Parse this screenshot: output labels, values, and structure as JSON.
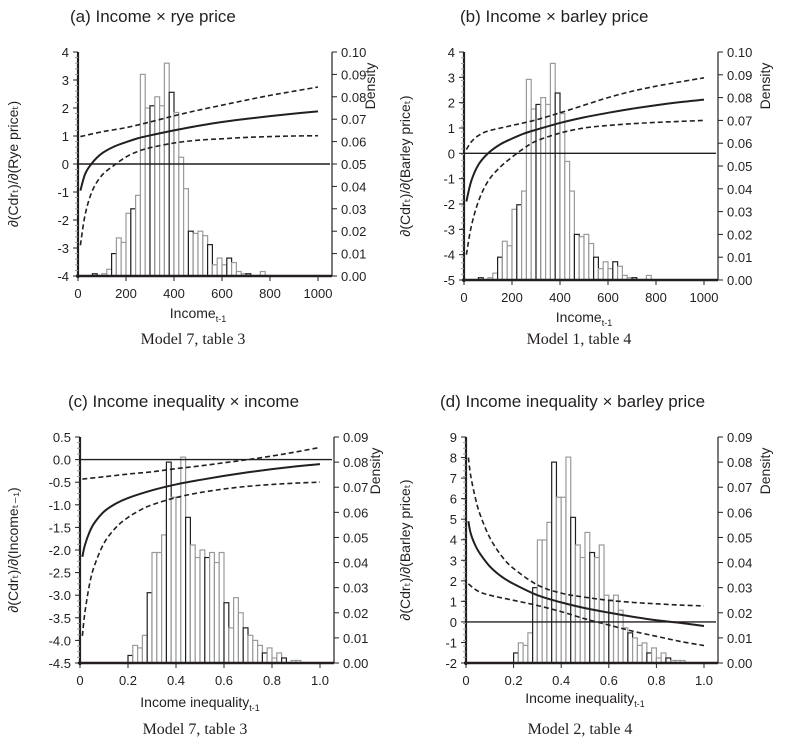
{
  "chart_data": [
    {
      "id": "a",
      "type": "line",
      "title": "(a) Income × rye price",
      "caption": "Model 7, table 3",
      "xlabel": "Income",
      "xlabel_sub": "t-1",
      "ylabel": "∂(Cdrₜ)/∂(Rye priceₜ)",
      "y2label": "Density",
      "xlim": [
        0,
        1000
      ],
      "ylim": [
        -4,
        4
      ],
      "y2lim": [
        0,
        0.1
      ],
      "xticks": [
        "0",
        "200",
        "400",
        "600",
        "800",
        "1000"
      ],
      "xtick_values": [
        0,
        200,
        400,
        600,
        800,
        1000
      ],
      "yticks": [
        "4",
        "3",
        "2",
        "1",
        "0",
        "-1",
        "-2",
        "-3",
        "-4"
      ],
      "ytick_values": [
        4,
        3,
        2,
        1,
        0,
        -1,
        -2,
        -3,
        -4
      ],
      "y2ticks": [
        "0.10",
        "0.09",
        "0.08",
        "0.07",
        "0.06",
        "0.05",
        "0.04",
        "0.03",
        "0.02",
        "0.01",
        "0.00"
      ],
      "y2tick_values": [
        0.1,
        0.09,
        0.08,
        0.07,
        0.06,
        0.05,
        0.04,
        0.03,
        0.02,
        0.01,
        0.0
      ],
      "zero_line": 0,
      "series": [
        {
          "name": "marginal effect",
          "style": "solid",
          "x": [
            10,
            30,
            60,
            100,
            150,
            200,
            250,
            300,
            400,
            500,
            600,
            700,
            800,
            900,
            1000
          ],
          "y": [
            -0.95,
            -0.35,
            0.05,
            0.38,
            0.62,
            0.78,
            0.92,
            1.02,
            1.2,
            1.36,
            1.5,
            1.61,
            1.71,
            1.8,
            1.88
          ]
        },
        {
          "name": "upper 95% CI",
          "style": "dashed",
          "x": [
            10,
            100,
            200,
            300,
            400,
            500,
            600,
            700,
            800,
            900,
            1000
          ],
          "y": [
            0.98,
            1.15,
            1.3,
            1.5,
            1.72,
            1.92,
            2.1,
            2.28,
            2.45,
            2.6,
            2.75
          ]
        },
        {
          "name": "lower 95% CI",
          "style": "dashed",
          "x": [
            10,
            30,
            60,
            100,
            150,
            200,
            250,
            300,
            400,
            500,
            600,
            700,
            800,
            900,
            1000
          ],
          "y": [
            -2.9,
            -1.8,
            -0.95,
            -0.4,
            -0.05,
            0.25,
            0.45,
            0.58,
            0.75,
            0.85,
            0.9,
            0.95,
            0.98,
            1.0,
            1.01
          ]
        }
      ],
      "histogram": {
        "bin_width": 20,
        "bin_starts": [
          60,
          80,
          100,
          120,
          140,
          160,
          180,
          200,
          220,
          240,
          260,
          280,
          300,
          320,
          340,
          360,
          380,
          400,
          420,
          440,
          460,
          480,
          500,
          520,
          540,
          560,
          580,
          600,
          620,
          640,
          660,
          680,
          700,
          720,
          740,
          760
        ],
        "density": [
          0.001,
          0,
          0.001,
          0.003,
          0.01,
          0.017,
          0.015,
          0.028,
          0.03,
          0.036,
          0.09,
          0.075,
          0.076,
          0.08,
          0.076,
          0.095,
          0.082,
          0.073,
          0.053,
          0.039,
          0.02,
          0.019,
          0.02,
          0.018,
          0.014,
          0.005,
          0.008,
          0.005,
          0.008,
          0.006,
          0.002,
          0.001,
          0.001,
          0,
          0,
          0.002
        ]
      }
    },
    {
      "id": "b",
      "type": "line",
      "title": "(b) Income × barley price",
      "caption": "Model 1, table 4",
      "xlabel": "Income",
      "xlabel_sub": "t-1",
      "ylabel": "∂(Cdrₜ)/∂(Barley priceₜ)",
      "y2label": "Density",
      "xlim": [
        0,
        1000
      ],
      "ylim": [
        -5,
        4
      ],
      "y2lim": [
        0,
        0.1
      ],
      "xticks": [
        "0",
        "200",
        "400",
        "600",
        "800",
        "1000"
      ],
      "xtick_values": [
        0,
        200,
        400,
        600,
        800,
        1000
      ],
      "yticks": [
        "4",
        "3",
        "2",
        "1",
        "0",
        "-1",
        "-2",
        "-3",
        "-4",
        "-5"
      ],
      "ytick_values": [
        4,
        3,
        2,
        1,
        0,
        -1,
        -2,
        -3,
        -4,
        -5
      ],
      "y2ticks": [
        "0.10",
        "0.09",
        "0.08",
        "0.07",
        "0.06",
        "0.05",
        "0.04",
        "0.03",
        "0.02",
        "0.01",
        "0.00"
      ],
      "y2tick_values": [
        0.1,
        0.09,
        0.08,
        0.07,
        0.06,
        0.05,
        0.04,
        0.03,
        0.02,
        0.01,
        0.0
      ],
      "zero_line": 0,
      "series": [
        {
          "name": "marginal effect",
          "style": "solid",
          "x": [
            10,
            30,
            60,
            100,
            150,
            200,
            250,
            300,
            400,
            500,
            600,
            700,
            800,
            900,
            1000
          ],
          "y": [
            -1.9,
            -1.1,
            -0.45,
            0.0,
            0.35,
            0.58,
            0.78,
            0.93,
            1.2,
            1.42,
            1.6,
            1.76,
            1.9,
            2.02,
            2.12
          ]
        },
        {
          "name": "upper 95% CI",
          "style": "dashed",
          "x": [
            10,
            30,
            60,
            100,
            200,
            300,
            400,
            500,
            600,
            700,
            800,
            900,
            1000
          ],
          "y": [
            0.15,
            0.45,
            0.7,
            0.88,
            1.1,
            1.32,
            1.6,
            1.9,
            2.2,
            2.45,
            2.65,
            2.82,
            2.98
          ]
        },
        {
          "name": "lower 95% CI",
          "style": "dashed",
          "x": [
            10,
            30,
            60,
            100,
            150,
            200,
            250,
            300,
            400,
            500,
            600,
            700,
            800,
            900,
            1000
          ],
          "y": [
            -4.0,
            -2.9,
            -1.9,
            -1.1,
            -0.55,
            -0.15,
            0.2,
            0.48,
            0.8,
            1.0,
            1.1,
            1.17,
            1.22,
            1.26,
            1.3
          ]
        }
      ],
      "histogram": {
        "bin_width": 20,
        "bin_starts": [
          60,
          80,
          100,
          120,
          140,
          160,
          180,
          200,
          220,
          240,
          260,
          280,
          300,
          320,
          340,
          360,
          380,
          400,
          420,
          440,
          460,
          480,
          500,
          520,
          540,
          560,
          580,
          600,
          620,
          640,
          660,
          680,
          700,
          720,
          740,
          760
        ],
        "density": [
          0.001,
          0,
          0.001,
          0.003,
          0.01,
          0.017,
          0.015,
          0.031,
          0.033,
          0.039,
          0.088,
          0.075,
          0.077,
          0.08,
          0.077,
          0.095,
          0.082,
          0.073,
          0.052,
          0.039,
          0.02,
          0.019,
          0.02,
          0.016,
          0.01,
          0.005,
          0.008,
          0.005,
          0.008,
          0.006,
          0.002,
          0.001,
          0.001,
          0,
          0,
          0.002
        ]
      }
    },
    {
      "id": "c",
      "type": "line",
      "title": "(c) Income inequality × income",
      "caption": "Model 7, table 3",
      "xlabel": "Income inequality",
      "xlabel_sub": "t-1",
      "ylabel": "∂(Cdrₜ)/∂(Incomeₜ₋₁)",
      "y2label": "Density",
      "xlim": [
        0,
        1.0
      ],
      "ylim": [
        -4.5,
        0.5
      ],
      "y2lim": [
        0,
        0.09
      ],
      "xticks": [
        "0",
        "0.2",
        "0.4",
        "0.6",
        "0.8",
        "1.0"
      ],
      "xtick_values": [
        0,
        0.2,
        0.4,
        0.6,
        0.8,
        1.0
      ],
      "yticks": [
        "0.5",
        "0.0",
        "-0.5",
        "-1.0",
        "-1.5",
        "-2.0",
        "-2.5",
        "-3.0",
        "-3.5",
        "-4.0",
        "-4.5"
      ],
      "ytick_values": [
        0.5,
        0.0,
        -0.5,
        -1.0,
        -1.5,
        -2.0,
        -2.5,
        -3.0,
        -3.5,
        -4.0,
        -4.5
      ],
      "y2ticks": [
        "0.09",
        "0.08",
        "0.07",
        "0.06",
        "0.05",
        "0.04",
        "0.03",
        "0.02",
        "0.01",
        "0.00"
      ],
      "y2tick_values": [
        0.09,
        0.08,
        0.07,
        0.06,
        0.05,
        0.04,
        0.03,
        0.02,
        0.01,
        0.0
      ],
      "zero_line": 0,
      "series": [
        {
          "name": "marginal effect",
          "style": "solid",
          "x": [
            0.01,
            0.02,
            0.04,
            0.06,
            0.1,
            0.15,
            0.2,
            0.3,
            0.4,
            0.5,
            0.6,
            0.7,
            0.8,
            0.9,
            1.0
          ],
          "y": [
            -2.15,
            -1.9,
            -1.6,
            -1.4,
            -1.15,
            -0.97,
            -0.85,
            -0.68,
            -0.55,
            -0.45,
            -0.36,
            -0.28,
            -0.21,
            -0.15,
            -0.1
          ]
        },
        {
          "name": "upper 95% CI",
          "style": "dashed",
          "x": [
            0.01,
            0.1,
            0.2,
            0.3,
            0.4,
            0.5,
            0.6,
            0.7,
            0.8,
            0.9,
            1.0
          ],
          "y": [
            -0.43,
            -0.38,
            -0.32,
            -0.27,
            -0.2,
            -0.14,
            -0.07,
            0.0,
            0.08,
            0.17,
            0.27
          ]
        },
        {
          "name": "lower 95% CI",
          "style": "dashed",
          "x": [
            0.01,
            0.02,
            0.04,
            0.06,
            0.1,
            0.15,
            0.2,
            0.25,
            0.3,
            0.4,
            0.5,
            0.6,
            0.7,
            0.8,
            0.9,
            1.0
          ],
          "y": [
            -3.9,
            -3.4,
            -2.75,
            -2.35,
            -1.85,
            -1.5,
            -1.28,
            -1.12,
            -1.0,
            -0.84,
            -0.73,
            -0.65,
            -0.59,
            -0.55,
            -0.52,
            -0.5
          ]
        }
      ],
      "histogram": {
        "bin_width": 0.02,
        "bin_starts": [
          0.2,
          0.22,
          0.24,
          0.26,
          0.28,
          0.3,
          0.32,
          0.34,
          0.36,
          0.38,
          0.4,
          0.42,
          0.44,
          0.46,
          0.48,
          0.5,
          0.52,
          0.54,
          0.56,
          0.58,
          0.6,
          0.62,
          0.64,
          0.66,
          0.68,
          0.7,
          0.72,
          0.74,
          0.76,
          0.78,
          0.8,
          0.82,
          0.84,
          0.86,
          0.88,
          0.9
        ],
        "density": [
          0.003,
          0.007,
          0.006,
          0.011,
          0.028,
          0.044,
          0.044,
          0.051,
          0.08,
          0.066,
          0.066,
          0.082,
          0.058,
          0.047,
          0.042,
          0.045,
          0.042,
          0.044,
          0.04,
          0.044,
          0.024,
          0.014,
          0.026,
          0.02,
          0.014,
          0.011,
          0.009,
          0.007,
          0.004,
          0.006,
          0.002,
          0.004,
          0.002,
          0,
          0.001,
          0.001
        ]
      }
    },
    {
      "id": "d",
      "type": "line",
      "title": "(d) Income inequality × barley price",
      "caption": "Model 2, table 4",
      "xlabel": "Income inequality",
      "xlabel_sub": "t-1",
      "ylabel": "∂(Cdrₜ)/∂(Barley priceₜ)",
      "y2label": "Density",
      "xlim": [
        0,
        1.0
      ],
      "ylim": [
        -2,
        9
      ],
      "y2lim": [
        0,
        0.09
      ],
      "xticks": [
        "0",
        "0.2",
        "0.4",
        "0.6",
        "0.8",
        "1.0"
      ],
      "xtick_values": [
        0,
        0.2,
        0.4,
        0.6,
        0.8,
        1.0
      ],
      "yticks": [
        "9",
        "8",
        "7",
        "6",
        "5",
        "4",
        "3",
        "2",
        "1",
        "0",
        "-1",
        "-2"
      ],
      "ytick_values": [
        9,
        8,
        7,
        6,
        5,
        4,
        3,
        2,
        1,
        0,
        -1,
        -2
      ],
      "y2ticks": [
        "0.09",
        "0.08",
        "0.07",
        "0.06",
        "0.05",
        "0.04",
        "0.03",
        "0.02",
        "0.01",
        "0.00"
      ],
      "y2tick_values": [
        0.09,
        0.08,
        0.07,
        0.06,
        0.05,
        0.04,
        0.03,
        0.02,
        0.01,
        0.0
      ],
      "zero_line": 0,
      "series": [
        {
          "name": "marginal effect",
          "style": "solid",
          "x": [
            0.01,
            0.02,
            0.04,
            0.06,
            0.1,
            0.15,
            0.2,
            0.3,
            0.4,
            0.5,
            0.6,
            0.7,
            0.8,
            0.9,
            1.0
          ],
          "y": [
            4.9,
            4.3,
            3.7,
            3.3,
            2.7,
            2.2,
            1.85,
            1.3,
            0.95,
            0.67,
            0.45,
            0.25,
            0.08,
            -0.05,
            -0.2
          ]
        },
        {
          "name": "upper 95% CI",
          "style": "dashed",
          "x": [
            0.01,
            0.02,
            0.04,
            0.06,
            0.1,
            0.15,
            0.2,
            0.3,
            0.4,
            0.5,
            0.6,
            0.7,
            0.8,
            0.9,
            1.0
          ],
          "y": [
            8.0,
            7.1,
            6.0,
            5.2,
            4.1,
            3.2,
            2.6,
            1.8,
            1.4,
            1.2,
            1.05,
            0.95,
            0.88,
            0.82,
            0.78
          ]
        },
        {
          "name": "lower 95% CI",
          "style": "dashed",
          "x": [
            0.01,
            0.05,
            0.1,
            0.2,
            0.3,
            0.4,
            0.5,
            0.6,
            0.7,
            0.8,
            0.9,
            1.0
          ],
          "y": [
            1.85,
            1.5,
            1.3,
            1.05,
            0.8,
            0.5,
            0.15,
            -0.15,
            -0.45,
            -0.7,
            -0.95,
            -1.15
          ]
        }
      ],
      "histogram": {
        "bin_width": 0.02,
        "bin_starts": [
          0.2,
          0.22,
          0.24,
          0.26,
          0.28,
          0.3,
          0.32,
          0.34,
          0.36,
          0.38,
          0.4,
          0.42,
          0.44,
          0.46,
          0.48,
          0.5,
          0.52,
          0.54,
          0.56,
          0.58,
          0.6,
          0.62,
          0.64,
          0.66,
          0.68,
          0.7,
          0.72,
          0.74,
          0.76,
          0.78,
          0.8,
          0.82,
          0.84,
          0.86,
          0.88,
          0.9
        ],
        "density": [
          0.004,
          0.008,
          0.007,
          0.012,
          0.03,
          0.049,
          0.049,
          0.056,
          0.08,
          0.066,
          0.066,
          0.082,
          0.058,
          0.047,
          0.042,
          0.052,
          0.044,
          0.042,
          0.047,
          0.027,
          0.025,
          0.027,
          0.021,
          0.014,
          0.012,
          0.01,
          0.007,
          0.008,
          0.004,
          0.006,
          0.002,
          0.004,
          0.002,
          0.001,
          0.001,
          0.001
        ]
      }
    }
  ]
}
